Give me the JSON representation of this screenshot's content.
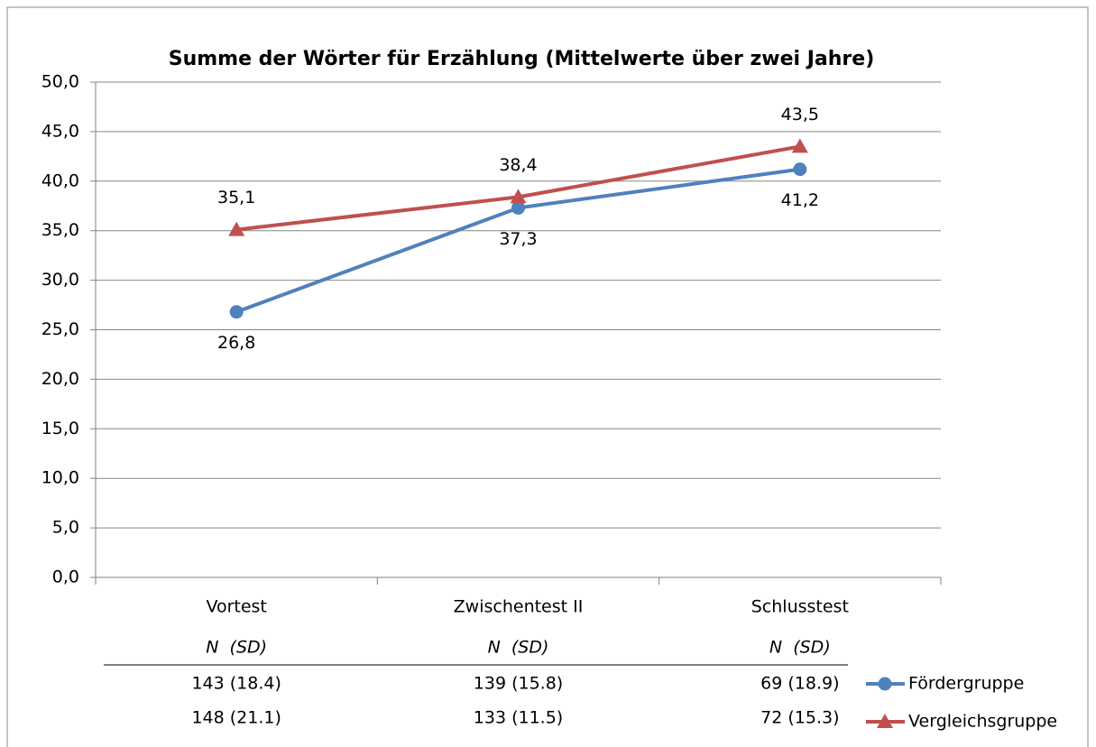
{
  "chart_data": {
    "type": "line",
    "title": "Summe der Wörter für Erzählung (Mittelwerte über zwei Jahre)",
    "categories": [
      "Vortest",
      "Zwischentest II",
      "Schlusstest"
    ],
    "series": [
      {
        "name": "Fördergruppe",
        "color": "#4f81bd",
        "marker": "circle",
        "values": [
          26.8,
          37.3,
          41.2
        ],
        "value_labels": [
          "26,8",
          "37,3",
          "41,2"
        ]
      },
      {
        "name": "Vergleichsgruppe",
        "color": "#c0504d",
        "marker": "triangle",
        "values": [
          35.1,
          38.4,
          43.5
        ],
        "value_labels": [
          "35,1",
          "38,4",
          "43,5"
        ]
      }
    ],
    "ylim": [
      0,
      50
    ],
    "yticks": [
      {
        "value": 0,
        "label": "0,0"
      },
      {
        "value": 5,
        "label": "5,0"
      },
      {
        "value": 10,
        "label": "10,0"
      },
      {
        "value": 15,
        "label": "15,0"
      },
      {
        "value": 20,
        "label": "20,0"
      },
      {
        "value": 25,
        "label": "25,0"
      },
      {
        "value": 30,
        "label": "30,0"
      },
      {
        "value": 35,
        "label": "35,0"
      },
      {
        "value": 40,
        "label": "40,0"
      },
      {
        "value": 45,
        "label": "45,0"
      },
      {
        "value": 50,
        "label": "50,0"
      }
    ],
    "grid": true,
    "table": {
      "column_headers": [
        "N  (SD)",
        "N  (SD)",
        "N  (SD)"
      ],
      "rows": [
        [
          "143 (18.4)",
          "139 (15.8)",
          "69 (18.9)"
        ],
        [
          "148 (21.1)",
          "133 (11.5)",
          "72 (15.3)"
        ]
      ]
    }
  }
}
